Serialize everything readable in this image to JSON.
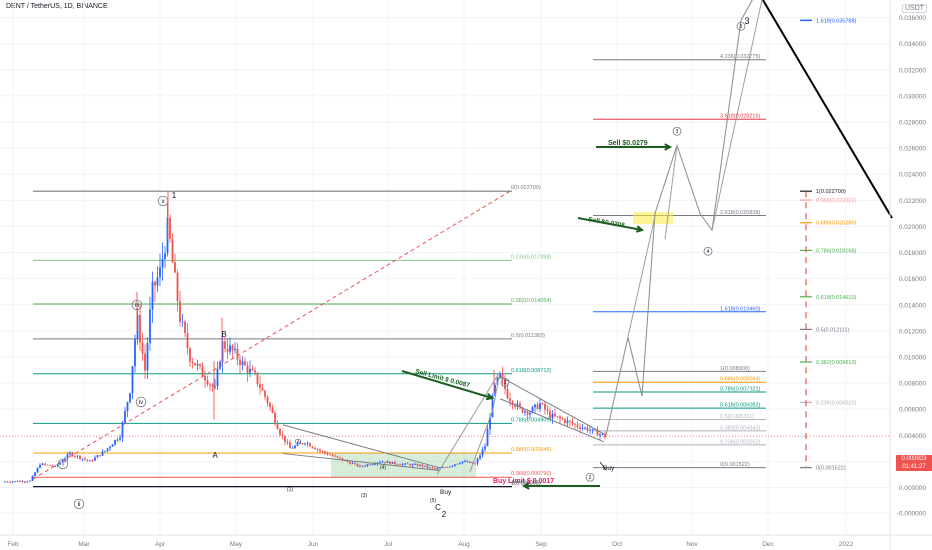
{
  "header": {
    "title": "DENT / TetherUS, 1D, BINANCE",
    "currency": "USDT",
    "last_price": "0.003923",
    "countdown": "01:41:27"
  },
  "colors": {
    "up": "#2962ff",
    "down": "#ef5350",
    "grid": "#f0f3fa",
    "axis": "#787b86",
    "trend": "#000000"
  },
  "chart_data": {
    "type": "candlestick",
    "symbol": "DENT / TetherUS",
    "interval": "1D",
    "exchange": "BINANCE",
    "x_ticks": [
      "Feb",
      "Mar",
      "Apr",
      "May",
      "Jun",
      "Jul",
      "Aug",
      "Sep",
      "Oct",
      "Nov",
      "Dec",
      "2022"
    ],
    "y_ticks": [
      "0.036000",
      "0.034000",
      "0.032000",
      "0.030000",
      "0.028000",
      "0.026000",
      "0.024000",
      "0.022000",
      "0.020000",
      "0.018000",
      "0.016000",
      "0.014000",
      "0.012000",
      "0.010000",
      "0.008000",
      "0.006000",
      "0.004000",
      "0.002000",
      "0.000000",
      "-0.000000"
    ],
    "ylim": [
      -0.0005,
      0.0395
    ],
    "fib_main": [
      {
        "label": "0(0.022700)",
        "value": 0.0227,
        "color": "#787b86"
      },
      {
        "label": "0.236(0.017398)",
        "value": 0.017398,
        "color": "#81c784"
      },
      {
        "label": "0.382(0.014054)",
        "value": 0.014054,
        "color": "#4caf50"
      },
      {
        "label": "0.5(0.011383)",
        "value": 0.011383,
        "color": "#787b86"
      },
      {
        "label": "0.618(0.008712)",
        "value": 0.008712,
        "color": "#089981"
      },
      {
        "label": "0.786(0.004909)",
        "value": 0.004909,
        "color": "#089981"
      },
      {
        "label": "0.886(0.002646)",
        "value": 0.002646,
        "color": "#ff9800"
      },
      {
        "label": "0.968(0.000790)",
        "value": 0.00079,
        "color": "#ef5350"
      },
      {
        "label": "1(0.000065)",
        "value": 6.5e-05,
        "color": "#131722"
      }
    ],
    "fib_ext": [
      {
        "label": "4.236(0.032775)",
        "value": 0.032775,
        "color": "#787b86"
      },
      {
        "label": "3.618(0.028216)",
        "value": 0.028216,
        "color": "#f23645"
      },
      {
        "label": "2.618(0.020838)",
        "value": 0.020838,
        "color": "#787b86"
      },
      {
        "label": "1.618(0.013460)",
        "value": 0.01346,
        "color": "#2962ff"
      },
      {
        "label": "1(0.008900)",
        "value": 0.0089,
        "color": "#787b86"
      },
      {
        "label": "0.886(0.008064)",
        "value": 0.008064,
        "color": "#ff9800"
      },
      {
        "label": "0.786(0.007321)",
        "value": 0.007321,
        "color": "#089981"
      },
      {
        "label": "0.618(0.006082)",
        "value": 0.006082,
        "color": "#089981"
      },
      {
        "label": "0.5(0.005211)",
        "value": 0.005211,
        "color": "#b2b5be"
      },
      {
        "label": "0.382(0.004341)",
        "value": 0.004341,
        "color": "#b2b5be"
      },
      {
        "label": "0.236(0.003262)",
        "value": 0.003262,
        "color": "#b2b5be"
      },
      {
        "label": "0(0.001522)",
        "value": 0.001522,
        "color": "#787b86"
      }
    ],
    "fib_right": [
      {
        "label": "1(0.022700)",
        "value": 0.0227,
        "color": "#131722"
      },
      {
        "label": "0.968(0.022022)",
        "value": 0.022022,
        "color": "#f7a1a1"
      },
      {
        "label": "0.886(0.020286)",
        "value": 0.020286,
        "color": "#ff9800"
      },
      {
        "label": "0.786(0.018168)",
        "value": 0.018168,
        "color": "#4caf50"
      },
      {
        "label": "0.618(0.014610)",
        "value": 0.01461,
        "color": "#4caf50"
      },
      {
        "label": "0.5(0.012111)",
        "value": 0.012111,
        "color": "#787b86"
      },
      {
        "label": "0.382(0.009613)",
        "value": 0.009613,
        "color": "#4caf50"
      },
      {
        "label": "0.236(0.006520)",
        "value": 0.00652,
        "color": "#b2b5be"
      },
      {
        "label": "0(0.001522)",
        "value": 0.001522,
        "color": "#787b86"
      }
    ],
    "fib_small_1": [
      {
        "label": "1.618(0.035788)",
        "value": 0.035788,
        "color": "#2962ff"
      }
    ],
    "annotations": {
      "sell_1": "Sell $0.0279",
      "sell_2": "Sell $0.0208",
      "sell_limit": "Sell Limit $ 0.0087",
      "buy_limit": "Buy Limit $ 0.0017",
      "buy_1": "Buy",
      "buy_2": "Buy"
    },
    "wave_labels": [
      "1",
      "v",
      "iii",
      "iv",
      "i",
      "ii",
      "B",
      "A",
      "C",
      "2",
      "(1)",
      "(2)",
      "(3)",
      "(4)",
      "(5)",
      "1",
      "2",
      "3",
      "4",
      "5",
      "3"
    ]
  }
}
